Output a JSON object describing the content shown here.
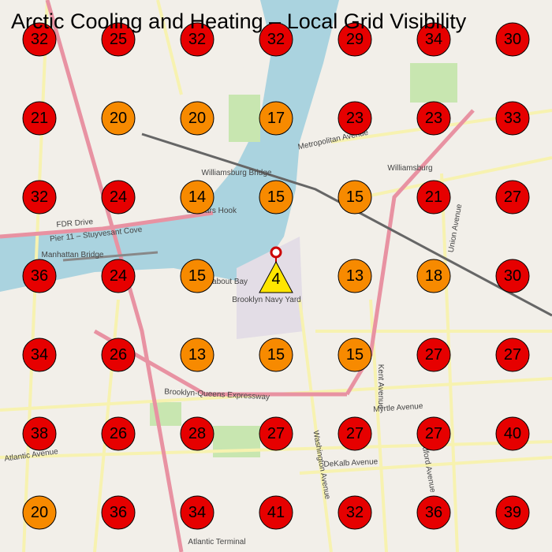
{
  "header": {
    "title": "Arctic Cooling and Heating – Local Grid Visibility"
  },
  "map_labels": [
    "Williamsburg Bridge",
    "Manhattan Bridge",
    "Brooklyn Navy Yard",
    "Williamsburg",
    "Metropolitan Avenue",
    "Brooklyn-Queens Expressway",
    "Myrtle Avenue",
    "Atlantic Avenue",
    "DeKalb Avenue",
    "Wallabout Bay",
    "FDR Drive",
    "Pier 11 – Stuyvesant Cove",
    "Kent Avenue",
    "Union Avenue",
    "Bedford Avenue",
    "Washington Avenue",
    "Corlears Hook",
    "Atlantic Terminal"
  ],
  "grid": {
    "rows": [
      [
        {
          "value": 32,
          "color": "#e60000"
        },
        {
          "value": 25,
          "color": "#e60000"
        },
        {
          "value": 32,
          "color": "#e60000"
        },
        {
          "value": 32,
          "color": "#e60000"
        },
        {
          "value": 29,
          "color": "#e60000"
        },
        {
          "value": 34,
          "color": "#e60000"
        },
        {
          "value": 30,
          "color": "#e60000"
        }
      ],
      [
        {
          "value": 21,
          "color": "#e60000"
        },
        {
          "value": 20,
          "color": "#f78a00"
        },
        {
          "value": 20,
          "color": "#f78a00"
        },
        {
          "value": 17,
          "color": "#f78a00"
        },
        {
          "value": 23,
          "color": "#e60000"
        },
        {
          "value": 23,
          "color": "#e60000"
        },
        {
          "value": 33,
          "color": "#e60000"
        }
      ],
      [
        {
          "value": 32,
          "color": "#e60000"
        },
        {
          "value": 24,
          "color": "#e60000"
        },
        {
          "value": 14,
          "color": "#f78a00"
        },
        {
          "value": 15,
          "color": "#f78a00"
        },
        {
          "value": 15,
          "color": "#f78a00"
        },
        {
          "value": 21,
          "color": "#e60000"
        },
        {
          "value": 27,
          "color": "#e60000"
        }
      ],
      [
        {
          "value": 36,
          "color": "#e60000"
        },
        {
          "value": 24,
          "color": "#e60000"
        },
        {
          "value": 15,
          "color": "#f78a00"
        },
        {
          "value": 4,
          "color": "#ffe600",
          "shape": "triangle"
        },
        {
          "value": 13,
          "color": "#f78a00"
        },
        {
          "value": 18,
          "color": "#f78a00"
        },
        {
          "value": 30,
          "color": "#e60000"
        }
      ],
      [
        {
          "value": 34,
          "color": "#e60000"
        },
        {
          "value": 26,
          "color": "#e60000"
        },
        {
          "value": 13,
          "color": "#f78a00"
        },
        {
          "value": 15,
          "color": "#f78a00"
        },
        {
          "value": 15,
          "color": "#f78a00"
        },
        {
          "value": 27,
          "color": "#e60000"
        },
        {
          "value": 27,
          "color": "#e60000"
        }
      ],
      [
        {
          "value": 38,
          "color": "#e60000"
        },
        {
          "value": 26,
          "color": "#e60000"
        },
        {
          "value": 28,
          "color": "#e60000"
        },
        {
          "value": 27,
          "color": "#e60000"
        },
        {
          "value": 27,
          "color": "#e60000"
        },
        {
          "value": 27,
          "color": "#e60000"
        },
        {
          "value": 40,
          "color": "#e60000"
        }
      ],
      [
        {
          "value": 20,
          "color": "#f78a00"
        },
        {
          "value": 36,
          "color": "#e60000"
        },
        {
          "value": 34,
          "color": "#e60000"
        },
        {
          "value": 41,
          "color": "#e60000"
        },
        {
          "value": 32,
          "color": "#e60000"
        },
        {
          "value": 36,
          "color": "#e60000"
        },
        {
          "value": 39,
          "color": "#e60000"
        }
      ]
    ]
  }
}
